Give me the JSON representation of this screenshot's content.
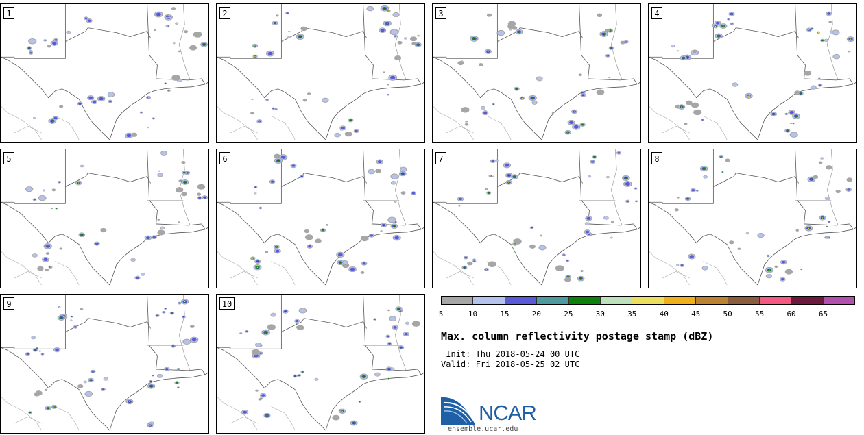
{
  "panels": [
    {
      "label": "1"
    },
    {
      "label": "2"
    },
    {
      "label": "3"
    },
    {
      "label": "4"
    },
    {
      "label": "5"
    },
    {
      "label": "6"
    },
    {
      "label": "7"
    },
    {
      "label": "8"
    },
    {
      "label": "9"
    },
    {
      "label": "10"
    }
  ],
  "colorbar": {
    "colors": [
      "#a6a6a6",
      "#b5c3ec",
      "#5a5ad8",
      "#4f9a9e",
      "#0c820c",
      "#bde0bd",
      "#ecdf5f",
      "#efb01a",
      "#bd8330",
      "#8b5d3f",
      "#f25a82",
      "#6d1a3f",
      "#b150ad"
    ],
    "ticks": [
      "5",
      "10",
      "15",
      "20",
      "25",
      "30",
      "35",
      "40",
      "45",
      "50",
      "55",
      "60",
      "65"
    ]
  },
  "title": "Max. column reflectivity postage stamp (dBZ)",
  "init": " Init: Thu 2018-05-24 00 UTC",
  "valid": "Valid: Fri 2018-05-25 02 UTC",
  "logo": {
    "text": "NCAR",
    "url": "ensemble.ucar.edu"
  }
}
